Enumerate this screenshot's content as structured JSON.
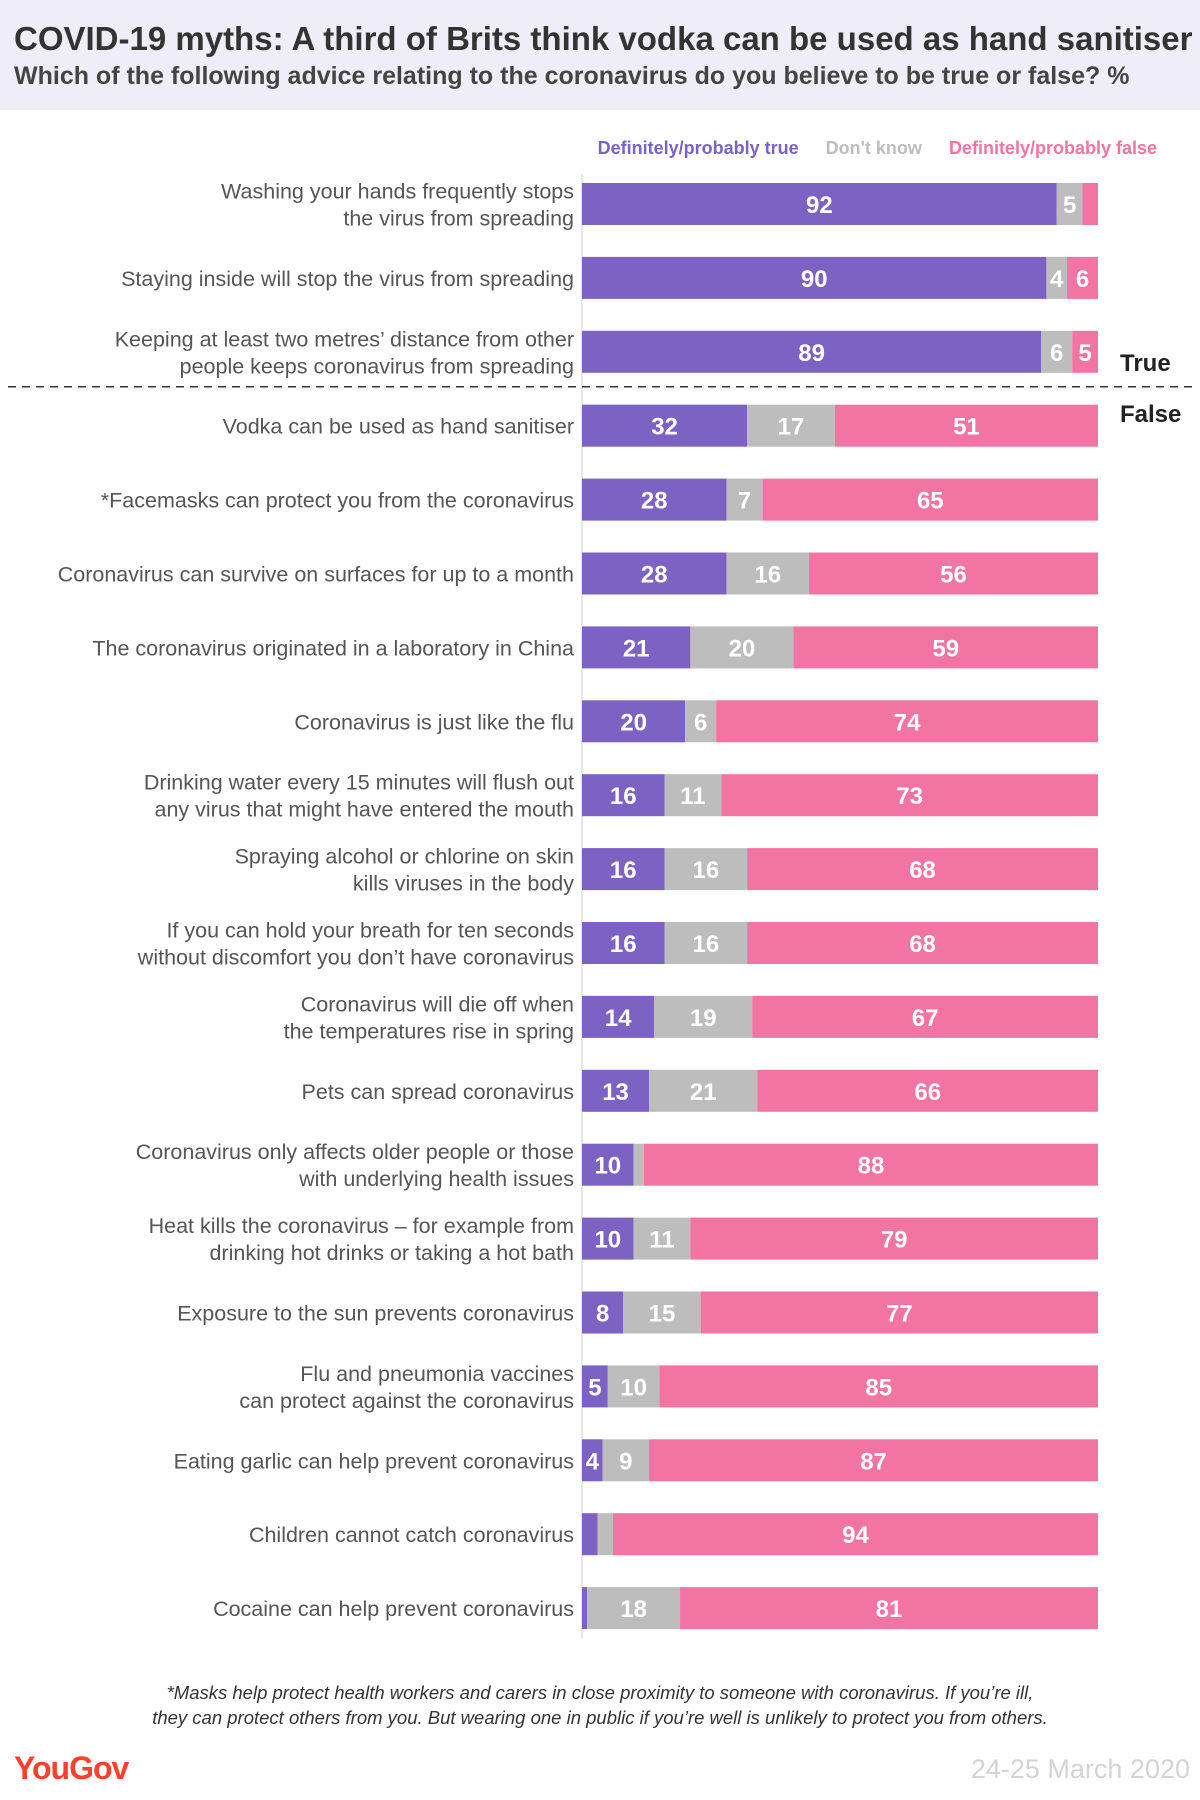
{
  "header": {
    "title": "COVID-19 myths: A third of Brits think vodka can be used as hand sanitiser",
    "subtitle": "Which of the following advice relating to the coronavirus do you believe to be true or false? %"
  },
  "colors": {
    "true": "#7b62c3",
    "dont_know": "#bdbdbd",
    "false": "#f274a2"
  },
  "chart_data": {
    "type": "bar",
    "orientation": "horizontal",
    "stacked": true,
    "xlim": [
      0,
      100
    ],
    "legend_position": "top-right",
    "series_names": [
      "Definitely/probably true",
      "Don't know",
      "Definitely/probably false"
    ],
    "group_labels": {
      "true": "True",
      "false": "False"
    },
    "rows": [
      {
        "label": [
          "Washing your hands frequently stops",
          "the virus from spreading"
        ],
        "values": [
          92,
          5,
          3
        ],
        "labels": [
          "92",
          "5",
          ""
        ],
        "group": "true"
      },
      {
        "label": [
          "Staying inside will stop the virus from spreading"
        ],
        "values": [
          90,
          4,
          6
        ],
        "labels": [
          "90",
          "4",
          "6"
        ],
        "group": "true"
      },
      {
        "label": [
          "Keeping at least two metres’ distance from other",
          "people keeps coronavirus from spreading"
        ],
        "values": [
          89,
          6,
          5
        ],
        "labels": [
          "89",
          "6",
          "5"
        ],
        "group": "true"
      },
      {
        "label": [
          "Vodka can be used as hand sanitiser"
        ],
        "values": [
          32,
          17,
          51
        ],
        "labels": [
          "32",
          "17",
          "51"
        ],
        "group": "false"
      },
      {
        "label": [
          "*Facemasks can protect you from the coronavirus"
        ],
        "values": [
          28,
          7,
          65
        ],
        "labels": [
          "28",
          "7",
          "65"
        ],
        "group": "false"
      },
      {
        "label": [
          "Coronavirus can survive on surfaces for up to a month"
        ],
        "values": [
          28,
          16,
          56
        ],
        "labels": [
          "28",
          "16",
          "56"
        ],
        "group": "false"
      },
      {
        "label": [
          "The coronavirus originated in a laboratory in China"
        ],
        "values": [
          21,
          20,
          59
        ],
        "labels": [
          "21",
          "20",
          "59"
        ],
        "group": "false"
      },
      {
        "label": [
          "Coronavirus is just like the flu"
        ],
        "values": [
          20,
          6,
          74
        ],
        "labels": [
          "20",
          "6",
          "74"
        ],
        "group": "false"
      },
      {
        "label": [
          "Drinking water every 15 minutes will flush out",
          "any virus that might have entered the mouth"
        ],
        "values": [
          16,
          11,
          73
        ],
        "labels": [
          "16",
          "11",
          "73"
        ],
        "group": "false"
      },
      {
        "label": [
          "Spraying alcohol or chlorine on skin",
          "kills viruses in the body"
        ],
        "values": [
          16,
          16,
          68
        ],
        "labels": [
          "16",
          "16",
          "68"
        ],
        "group": "false"
      },
      {
        "label": [
          "If you can hold your breath for ten seconds",
          "without discomfort you don’t have coronavirus"
        ],
        "values": [
          16,
          16,
          68
        ],
        "labels": [
          "16",
          "16",
          "68"
        ],
        "group": "false"
      },
      {
        "label": [
          "Coronavirus will die off when",
          "the temperatures rise in spring"
        ],
        "values": [
          14,
          19,
          67
        ],
        "labels": [
          "14",
          "19",
          "67"
        ],
        "group": "false"
      },
      {
        "label": [
          "Pets can spread coronavirus"
        ],
        "values": [
          13,
          21,
          66
        ],
        "labels": [
          "13",
          "21",
          "66"
        ],
        "group": "false"
      },
      {
        "label": [
          "Coronavirus only affects older people or those",
          "with underlying health issues"
        ],
        "values": [
          10,
          2,
          88
        ],
        "labels": [
          "10",
          "",
          "88"
        ],
        "group": "false"
      },
      {
        "label": [
          "Heat kills the coronavirus – for example from",
          "drinking hot drinks or taking a hot bath"
        ],
        "values": [
          10,
          11,
          79
        ],
        "labels": [
          "10",
          "11",
          "79"
        ],
        "group": "false"
      },
      {
        "label": [
          "Exposure to the sun prevents coronavirus"
        ],
        "values": [
          8,
          15,
          77
        ],
        "labels": [
          "8",
          "15",
          "77"
        ],
        "group": "false"
      },
      {
        "label": [
          "Flu and pneumonia vaccines",
          "can protect against the coronavirus"
        ],
        "values": [
          5,
          10,
          85
        ],
        "labels": [
          "5",
          "10",
          "85"
        ],
        "group": "false"
      },
      {
        "label": [
          "Eating garlic can help prevent coronavirus"
        ],
        "values": [
          4,
          9,
          87
        ],
        "labels": [
          "4",
          "9",
          "87"
        ],
        "group": "false"
      },
      {
        "label": [
          "Children cannot catch coronavirus"
        ],
        "values": [
          3,
          3,
          94
        ],
        "labels": [
          "",
          "",
          "94"
        ],
        "group": "false"
      },
      {
        "label": [
          "Cocaine can help prevent coronavirus"
        ],
        "values": [
          1,
          18,
          81
        ],
        "labels": [
          "",
          "18",
          "81"
        ],
        "group": "false"
      }
    ]
  },
  "footnote": {
    "line1": "*Masks help protect health workers and carers in close proximity to someone with coronavirus. If you’re ill,",
    "line2": "they can protect others from you. But wearing one in public if you’re well is unlikely to protect you from others."
  },
  "brand": "YouGov",
  "date": "24-25 March 2020"
}
